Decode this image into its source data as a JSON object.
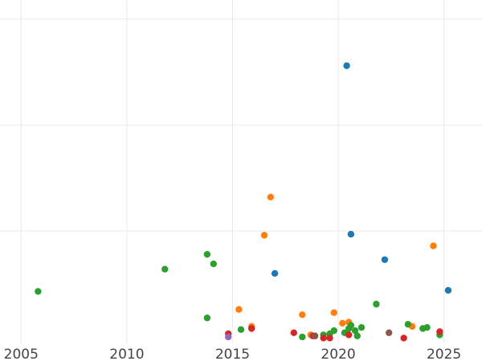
{
  "chart_data": {
    "type": "scatter",
    "title": "",
    "xlabel": "",
    "ylabel": "",
    "xlim": [
      2004,
      2026.8
    ],
    "ylim": [
      -0.3,
      15.9
    ],
    "x_ticks": [
      2005,
      2010,
      2015,
      2020,
      2025
    ],
    "y_gridlines": [
      5,
      10,
      15
    ],
    "grid": true,
    "series": [
      {
        "color": "#1f77b4",
        "points": [
          {
            "x": 2020.4,
            "y": 12.8
          },
          {
            "x": 2020.6,
            "y": 4.85
          },
          {
            "x": 2017.0,
            "y": 3.0
          },
          {
            "x": 2022.2,
            "y": 3.65
          },
          {
            "x": 2025.2,
            "y": 2.2
          }
        ]
      },
      {
        "color": "#ff7f0e",
        "points": [
          {
            "x": 2016.8,
            "y": 6.6
          },
          {
            "x": 2016.5,
            "y": 4.8
          },
          {
            "x": 2024.5,
            "y": 4.3
          },
          {
            "x": 2015.3,
            "y": 1.3
          },
          {
            "x": 2018.3,
            "y": 1.05
          },
          {
            "x": 2019.8,
            "y": 1.15
          },
          {
            "x": 2020.2,
            "y": 0.65
          },
          {
            "x": 2020.5,
            "y": 0.7
          },
          {
            "x": 2015.9,
            "y": 0.5
          },
          {
            "x": 2023.5,
            "y": 0.5
          },
          {
            "x": 2018.7,
            "y": 0.1
          }
        ]
      },
      {
        "color": "#2ca02c",
        "points": [
          {
            "x": 2005.8,
            "y": 2.15
          },
          {
            "x": 2011.8,
            "y": 3.2
          },
          {
            "x": 2013.8,
            "y": 3.9
          },
          {
            "x": 2014.1,
            "y": 3.45
          },
          {
            "x": 2013.8,
            "y": 0.9
          },
          {
            "x": 2015.4,
            "y": 0.35
          },
          {
            "x": 2018.3,
            "y": 0.0
          },
          {
            "x": 2019.3,
            "y": 0.1
          },
          {
            "x": 2019.6,
            "y": 0.15
          },
          {
            "x": 2019.8,
            "y": 0.3
          },
          {
            "x": 2020.3,
            "y": 0.2
          },
          {
            "x": 2020.5,
            "y": 0.4
          },
          {
            "x": 2020.6,
            "y": 0.55
          },
          {
            "x": 2020.8,
            "y": 0.3
          },
          {
            "x": 2020.9,
            "y": 0.05
          },
          {
            "x": 2021.1,
            "y": 0.45
          },
          {
            "x": 2021.8,
            "y": 1.55
          },
          {
            "x": 2023.3,
            "y": 0.6
          },
          {
            "x": 2024.0,
            "y": 0.4
          },
          {
            "x": 2024.2,
            "y": 0.45
          },
          {
            "x": 2024.8,
            "y": 0.1
          }
        ]
      },
      {
        "color": "#d62728",
        "points": [
          {
            "x": 2014.8,
            "y": 0.15
          },
          {
            "x": 2015.9,
            "y": 0.4
          },
          {
            "x": 2017.9,
            "y": 0.2
          },
          {
            "x": 2018.8,
            "y": 0.05
          },
          {
            "x": 2019.3,
            "y": -0.05
          },
          {
            "x": 2019.6,
            "y": -0.05
          },
          {
            "x": 2020.5,
            "y": 0.1
          },
          {
            "x": 2023.1,
            "y": -0.05
          },
          {
            "x": 2024.8,
            "y": 0.25
          }
        ]
      },
      {
        "color": "#9467bd",
        "points": [
          {
            "x": 2014.8,
            "y": 0.0
          }
        ]
      },
      {
        "color": "#8c564b",
        "points": [
          {
            "x": 2018.9,
            "y": 0.05
          },
          {
            "x": 2022.4,
            "y": 0.2
          }
        ]
      }
    ]
  }
}
